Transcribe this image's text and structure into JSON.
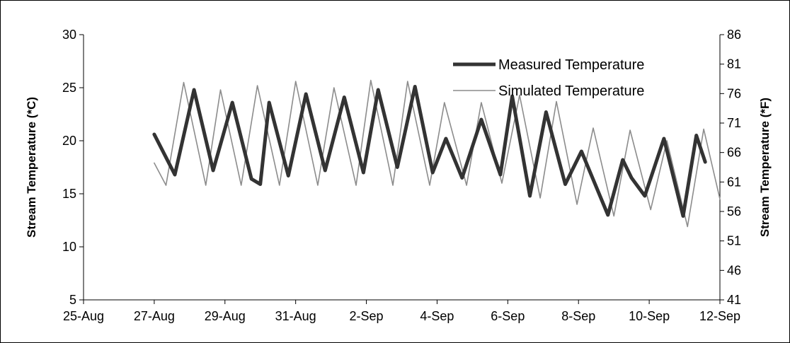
{
  "chart_data": {
    "type": "line",
    "ylabel": "Stream Temperature (*C)",
    "y2label": "Stream Temperature (*F)",
    "ylim": [
      5,
      30
    ],
    "y2lim": [
      41,
      86
    ],
    "yticks": [
      "5",
      "10",
      "15",
      "20",
      "25",
      "30"
    ],
    "y2ticks": [
      "41",
      "46",
      "51",
      "56",
      "61",
      "66",
      "71",
      "76",
      "81",
      "86"
    ],
    "xlim": [
      "2023-08-25",
      "2023-09-12"
    ],
    "xticks": [
      "25-Aug",
      "27-Aug",
      "29-Aug",
      "31-Aug",
      "2-Sep",
      "4-Sep",
      "6-Sep",
      "8-Sep",
      "10-Sep",
      "12-Sep"
    ],
    "legend_position": "top-right",
    "grid": false,
    "series": [
      {
        "name": "Measured Temperature",
        "color": "#333333",
        "points": [
          [
            "2023-08-27 00:00",
            20.6
          ],
          [
            "2023-08-27 14:00",
            16.8
          ],
          [
            "2023-08-28 03:00",
            24.8
          ],
          [
            "2023-08-28 16:00",
            17.2
          ],
          [
            "2023-08-29 05:00",
            23.6
          ],
          [
            "2023-08-29 18:00",
            16.4
          ],
          [
            "2023-08-30 00:00",
            15.9
          ],
          [
            "2023-08-30 06:00",
            23.6
          ],
          [
            "2023-08-30 19:00",
            16.7
          ],
          [
            "2023-08-31 07:00",
            24.4
          ],
          [
            "2023-08-31 20:00",
            17.2
          ],
          [
            "2023-09-01 09:00",
            24.1
          ],
          [
            "2023-09-01 22:00",
            17.0
          ],
          [
            "2023-09-02 08:00",
            24.8
          ],
          [
            "2023-09-02 21:00",
            17.5
          ],
          [
            "2023-09-03 09:00",
            25.1
          ],
          [
            "2023-09-03 21:00",
            17.0
          ],
          [
            "2023-09-04 06:00",
            20.2
          ],
          [
            "2023-09-04 17:00",
            16.5
          ],
          [
            "2023-09-05 06:00",
            22.0
          ],
          [
            "2023-09-05 19:00",
            16.8
          ],
          [
            "2023-09-06 03:00",
            24.2
          ],
          [
            "2023-09-06 15:00",
            14.8
          ],
          [
            "2023-09-07 02:00",
            22.7
          ],
          [
            "2023-09-07 15:00",
            15.9
          ],
          [
            "2023-09-08 02:00",
            19.0
          ],
          [
            "2023-09-08 20:00",
            13.0
          ],
          [
            "2023-09-09 06:00",
            18.2
          ],
          [
            "2023-09-09 12:00",
            16.5
          ],
          [
            "2023-09-09 21:00",
            14.8
          ],
          [
            "2023-09-10 10:00",
            20.2
          ],
          [
            "2023-09-10 23:00",
            12.9
          ],
          [
            "2023-09-11 08:00",
            20.5
          ],
          [
            "2023-09-11 14:00",
            18.0
          ]
        ]
      },
      {
        "name": "Simulated Temperature",
        "color": "#8c8c8c",
        "points": [
          [
            "2023-08-27 00:00",
            17.9
          ],
          [
            "2023-08-27 08:00",
            15.8
          ],
          [
            "2023-08-27 20:00",
            25.5
          ],
          [
            "2023-08-28 11:00",
            15.8
          ],
          [
            "2023-08-28 21:00",
            24.8
          ],
          [
            "2023-08-29 11:00",
            15.8
          ],
          [
            "2023-08-29 22:00",
            25.2
          ],
          [
            "2023-08-30 13:00",
            15.8
          ],
          [
            "2023-08-31 00:00",
            25.6
          ],
          [
            "2023-08-31 15:00",
            15.8
          ],
          [
            "2023-09-01 02:00",
            25.0
          ],
          [
            "2023-09-01 17:00",
            15.8
          ],
          [
            "2023-09-02 03:00",
            25.7
          ],
          [
            "2023-09-02 18:00",
            15.8
          ],
          [
            "2023-09-03 04:00",
            25.6
          ],
          [
            "2023-09-03 19:00",
            15.8
          ],
          [
            "2023-09-04 05:00",
            23.6
          ],
          [
            "2023-09-04 20:00",
            15.8
          ],
          [
            "2023-09-05 06:00",
            23.6
          ],
          [
            "2023-09-05 20:00",
            16.0
          ],
          [
            "2023-09-06 08:00",
            24.3
          ],
          [
            "2023-09-06 22:00",
            14.6
          ],
          [
            "2023-09-07 09:00",
            23.7
          ],
          [
            "2023-09-07 23:00",
            14.0
          ],
          [
            "2023-09-08 10:00",
            21.2
          ],
          [
            "2023-09-09 00:00",
            12.9
          ],
          [
            "2023-09-09 11:00",
            21.0
          ],
          [
            "2023-09-10 01:00",
            13.5
          ],
          [
            "2023-09-10 12:00",
            20.0
          ],
          [
            "2023-09-11 02:00",
            11.9
          ],
          [
            "2023-09-11 13:00",
            21.1
          ],
          [
            "2023-09-12 00:00",
            14.5
          ]
        ]
      }
    ]
  }
}
